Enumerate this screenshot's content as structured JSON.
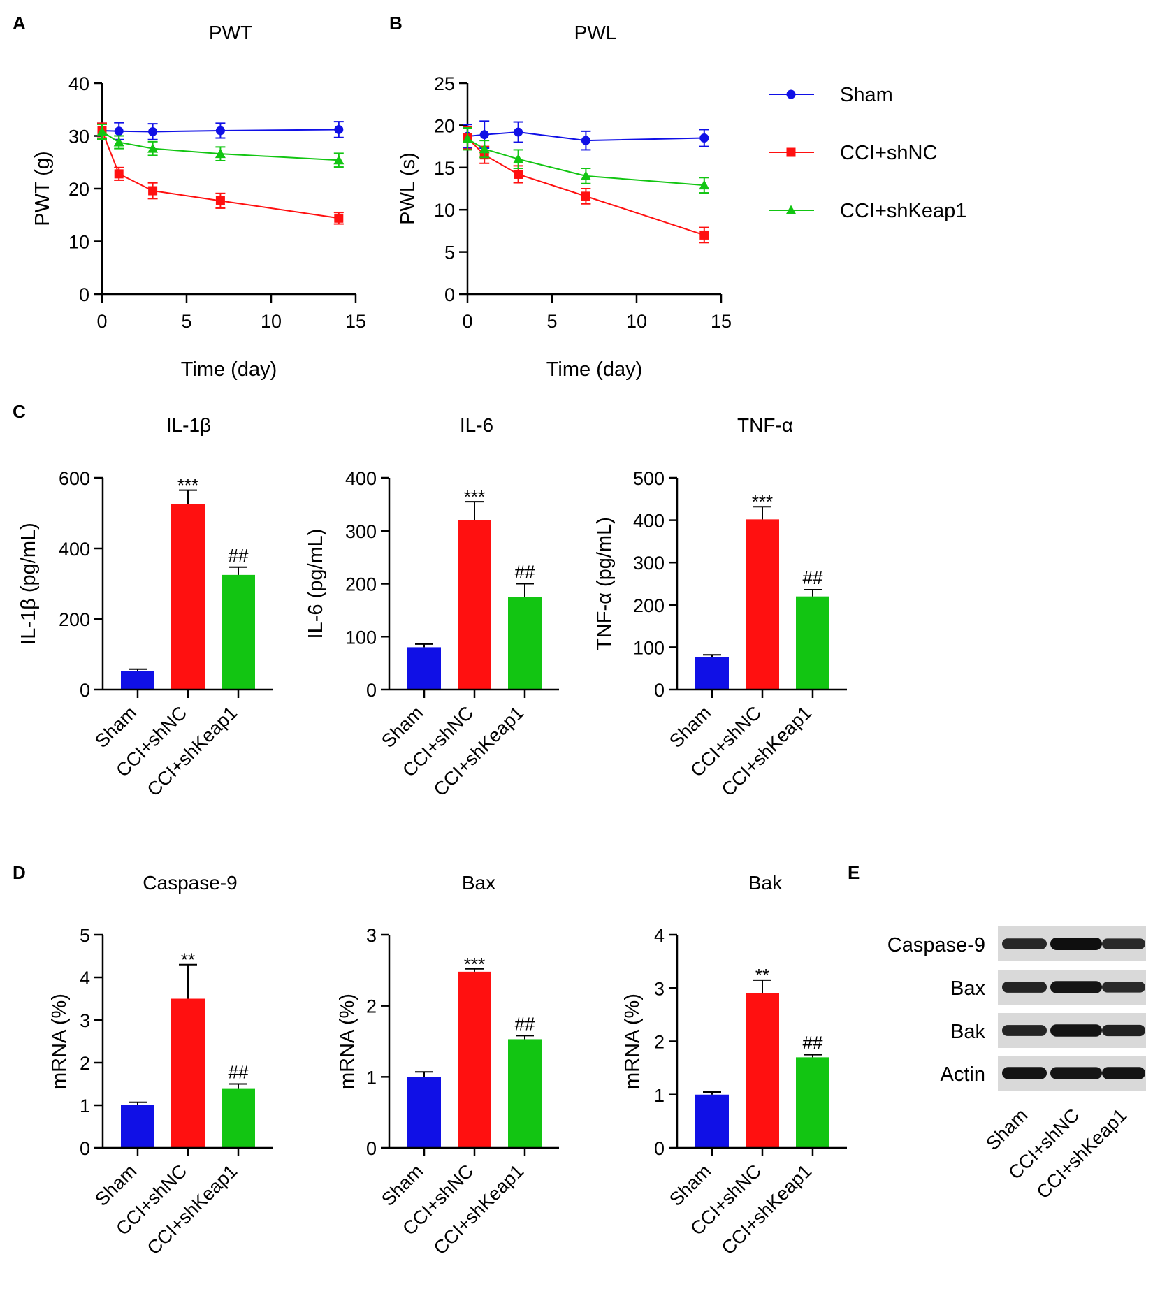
{
  "figure": {
    "colors": {
      "Sham": "#1010e6",
      "CCI+shNC": "#ff1010",
      "CCI+shKeap1": "#12c512",
      "axis": "#000000"
    },
    "groups": [
      "Sham",
      "CCI+shNC",
      "CCI+shKeap1"
    ],
    "legend": {
      "Sham": "Sham",
      "CCI+shNC": "CCI+shNC",
      "CCI+shKeap1": "CCI+shKeap1"
    }
  },
  "chart_data": [
    {
      "panel": "A",
      "type": "line",
      "title": "PWT",
      "xlabel": "Time (day)",
      "ylabel": "PWT (g)",
      "xlim": [
        0,
        15
      ],
      "ylim": [
        0,
        40
      ],
      "xticks": [
        0,
        5,
        10,
        15
      ],
      "yticks": [
        0,
        10,
        20,
        30,
        40
      ],
      "x": [
        0,
        1,
        3,
        7,
        14
      ],
      "series": [
        {
          "name": "Sham",
          "marker": "circle",
          "values": [
            31,
            30.9,
            30.8,
            31,
            31.2
          ],
          "errors": [
            1.4,
            1.6,
            1.5,
            1.4,
            1.5
          ]
        },
        {
          "name": "CCI+shNC",
          "marker": "square",
          "values": [
            31,
            22.8,
            19.6,
            17.7,
            14.4
          ],
          "errors": [
            1.4,
            1.2,
            1.5,
            1.4,
            1.1
          ]
        },
        {
          "name": "CCI+shKeap1",
          "marker": "triangle",
          "values": [
            30.8,
            28.8,
            27.6,
            26.6,
            25.4
          ],
          "errors": [
            1.4,
            1.2,
            1.3,
            1.3,
            1.3
          ]
        }
      ]
    },
    {
      "panel": "B",
      "type": "line",
      "title": "PWL",
      "xlabel": "Time (day)",
      "ylabel": "PWL (s)",
      "xlim": [
        0,
        15
      ],
      "ylim": [
        0,
        25
      ],
      "xticks": [
        0,
        5,
        10,
        15
      ],
      "yticks": [
        0,
        5,
        10,
        15,
        20,
        25
      ],
      "x": [
        0,
        1,
        3,
        7,
        14
      ],
      "series": [
        {
          "name": "Sham",
          "marker": "circle",
          "values": [
            18.7,
            18.9,
            19.2,
            18.2,
            18.5
          ],
          "errors": [
            1.4,
            1.6,
            1.2,
            1.1,
            1.0
          ]
        },
        {
          "name": "CCI+shNC",
          "marker": "square",
          "values": [
            18.5,
            16.5,
            14.2,
            11.6,
            7.0
          ],
          "errors": [
            1.3,
            1.0,
            1.0,
            0.9,
            0.9
          ]
        },
        {
          "name": "CCI+shKeap1",
          "marker": "triangle",
          "values": [
            18.4,
            17.2,
            16.0,
            14.0,
            12.9
          ],
          "errors": [
            1.3,
            1.0,
            1.1,
            0.9,
            0.9
          ]
        }
      ]
    },
    {
      "panel": "C",
      "type": "bar",
      "title": "IL-1β",
      "ylabel": "IL-1β (pg/mL)",
      "ylim": [
        0,
        600
      ],
      "yticks": [
        0,
        200,
        400,
        600
      ],
      "categories": [
        "Sham",
        "CCI+shNC",
        "CCI+shKeap1"
      ],
      "values": [
        52,
        525,
        325
      ],
      "errors": [
        6,
        40,
        22
      ],
      "annotations": [
        "",
        "***",
        "##"
      ]
    },
    {
      "panel": "",
      "type": "bar",
      "title": "IL-6",
      "ylabel": "IL-6 (pg/mL)",
      "ylim": [
        0,
        400
      ],
      "yticks": [
        0,
        100,
        200,
        300,
        400
      ],
      "categories": [
        "Sham",
        "CCI+shNC",
        "CCI+shKeap1"
      ],
      "values": [
        80,
        320,
        175
      ],
      "errors": [
        6,
        35,
        25
      ],
      "annotations": [
        "",
        "***",
        "##"
      ]
    },
    {
      "panel": "",
      "type": "bar",
      "title": "TNF-α",
      "ylabel": "TNF-α (pg/mL)",
      "ylim": [
        0,
        500
      ],
      "yticks": [
        0,
        100,
        200,
        300,
        400,
        500
      ],
      "categories": [
        "Sham",
        "CCI+shNC",
        "CCI+shKeap1"
      ],
      "values": [
        77,
        402,
        220
      ],
      "errors": [
        5,
        30,
        16
      ],
      "annotations": [
        "",
        "***",
        "##"
      ]
    },
    {
      "panel": "D",
      "type": "bar",
      "title": "Caspase-9",
      "ylabel": "mRNA (%)",
      "ylim": [
        0,
        5
      ],
      "yticks": [
        0,
        1,
        2,
        3,
        4,
        5
      ],
      "categories": [
        "Sham",
        "CCI+shNC",
        "CCI+shKeap1"
      ],
      "values": [
        1.0,
        3.5,
        1.4
      ],
      "errors": [
        0.07,
        0.8,
        0.1
      ],
      "annotations": [
        "",
        "**",
        "##"
      ]
    },
    {
      "panel": "",
      "type": "bar",
      "title": "Bax",
      "ylabel": "mRNA (%)",
      "ylim": [
        0,
        3
      ],
      "yticks": [
        0,
        1,
        2,
        3
      ],
      "categories": [
        "Sham",
        "CCI+shNC",
        "CCI+shKeap1"
      ],
      "values": [
        1.0,
        2.48,
        1.53
      ],
      "errors": [
        0.07,
        0.04,
        0.05
      ],
      "annotations": [
        "",
        "***",
        "##"
      ]
    },
    {
      "panel": "",
      "type": "bar",
      "title": "Bak",
      "ylabel": "mRNA (%)",
      "ylim": [
        0,
        4
      ],
      "yticks": [
        0,
        1,
        2,
        3,
        4
      ],
      "categories": [
        "Sham",
        "CCI+shNC",
        "CCI+shKeap1"
      ],
      "values": [
        1.0,
        2.9,
        1.7
      ],
      "errors": [
        0.05,
        0.25,
        0.05
      ],
      "annotations": [
        "",
        "**",
        "##"
      ]
    }
  ],
  "blot": {
    "panel": "E",
    "rows": [
      {
        "label": "Caspase-9",
        "intensity": [
          0.75,
          1.0,
          0.72
        ]
      },
      {
        "label": "Bax",
        "intensity": [
          0.78,
          0.95,
          0.72
        ]
      },
      {
        "label": "Bak",
        "intensity": [
          0.78,
          0.95,
          0.82
        ]
      },
      {
        "label": "Actin",
        "intensity": [
          0.95,
          0.93,
          0.95
        ]
      }
    ],
    "lanes": [
      "Sham",
      "CCI+shNC",
      "CCI+shKeap1"
    ]
  }
}
